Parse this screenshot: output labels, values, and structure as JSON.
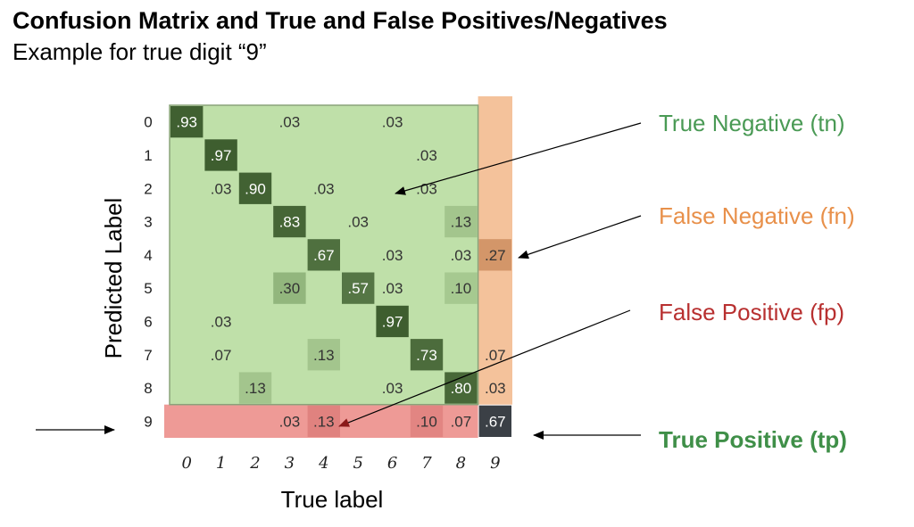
{
  "title": "Confusion Matrix and True and False Positives/Negatives",
  "subtitle": "Example for true digit “9”",
  "chart_data": {
    "type": "heatmap",
    "xlabel": "True label",
    "ylabel": "Predicted Label",
    "x_tick_labels": [
      "0",
      "1",
      "2",
      "3",
      "4",
      "5",
      "6",
      "7",
      "8",
      "9"
    ],
    "y_tick_labels": [
      "0",
      "1",
      "2",
      "3",
      "4",
      "5",
      "6",
      "7",
      "8",
      "9"
    ],
    "cells": [
      {
        "row": 0,
        "col": 0,
        "label": ".93",
        "value": 0.93
      },
      {
        "row": 0,
        "col": 3,
        "label": ".03",
        "value": 0.03
      },
      {
        "row": 0,
        "col": 6,
        "label": ".03",
        "value": 0.03
      },
      {
        "row": 1,
        "col": 1,
        "label": ".97",
        "value": 0.97
      },
      {
        "row": 1,
        "col": 7,
        "label": ".03",
        "value": 0.03
      },
      {
        "row": 2,
        "col": 1,
        "label": ".03",
        "value": 0.03
      },
      {
        "row": 2,
        "col": 2,
        "label": ".90",
        "value": 0.9
      },
      {
        "row": 2,
        "col": 4,
        "label": ".03",
        "value": 0.03
      },
      {
        "row": 2,
        "col": 7,
        "label": ".03",
        "value": 0.03
      },
      {
        "row": 3,
        "col": 3,
        "label": ".83",
        "value": 0.83
      },
      {
        "row": 3,
        "col": 5,
        "label": ".03",
        "value": 0.03
      },
      {
        "row": 3,
        "col": 8,
        "label": ".13",
        "value": 0.13
      },
      {
        "row": 4,
        "col": 4,
        "label": ".67",
        "value": 0.67
      },
      {
        "row": 4,
        "col": 6,
        "label": ".03",
        "value": 0.03
      },
      {
        "row": 4,
        "col": 8,
        "label": ".03",
        "value": 0.03
      },
      {
        "row": 4,
        "col": 9,
        "label": ".27",
        "value": 0.27
      },
      {
        "row": 5,
        "col": 3,
        "label": ".30",
        "value": 0.3
      },
      {
        "row": 5,
        "col": 5,
        "label": ".57",
        "value": 0.57
      },
      {
        "row": 5,
        "col": 6,
        "label": ".03",
        "value": 0.03
      },
      {
        "row": 5,
        "col": 8,
        "label": ".10",
        "value": 0.1
      },
      {
        "row": 6,
        "col": 1,
        "label": ".03",
        "value": 0.03
      },
      {
        "row": 6,
        "col": 6,
        "label": ".97",
        "value": 0.97
      },
      {
        "row": 7,
        "col": 1,
        "label": ".07",
        "value": 0.07
      },
      {
        "row": 7,
        "col": 4,
        "label": ".13",
        "value": 0.13
      },
      {
        "row": 7,
        "col": 7,
        "label": ".73",
        "value": 0.73
      },
      {
        "row": 7,
        "col": 9,
        "label": ".07",
        "value": 0.07
      },
      {
        "row": 8,
        "col": 2,
        "label": ".13",
        "value": 0.13
      },
      {
        "row": 8,
        "col": 6,
        "label": ".03",
        "value": 0.03
      },
      {
        "row": 8,
        "col": 8,
        "label": ".80",
        "value": 0.8
      },
      {
        "row": 8,
        "col": 9,
        "label": ".03",
        "value": 0.03
      },
      {
        "row": 9,
        "col": 3,
        "label": ".03",
        "value": 0.03
      },
      {
        "row": 9,
        "col": 4,
        "label": ".13",
        "value": 0.13
      },
      {
        "row": 9,
        "col": 7,
        "label": ".10",
        "value": 0.1
      },
      {
        "row": 9,
        "col": 8,
        "label": ".07",
        "value": 0.07
      },
      {
        "row": 9,
        "col": 9,
        "label": ".67",
        "value": 0.67
      }
    ],
    "regions": {
      "true_negative": {
        "label": "True Negative (tn)",
        "color": "#4a9a55"
      },
      "false_negative": {
        "label": "False Negative (fn)",
        "color": "#e8904a"
      },
      "false_positive": {
        "label": "False Positive (fp)",
        "color": "#b83030"
      },
      "true_positive": {
        "label": "True Positive (tp)",
        "color": "#3f8f48"
      }
    },
    "colors": {
      "tn_bg": "#bfe0a9",
      "fn_bg": "#f4c29b",
      "fp_bg": "#ee9a96",
      "diag": "#4c6f3b",
      "tp_cell": "#3b4046"
    }
  }
}
